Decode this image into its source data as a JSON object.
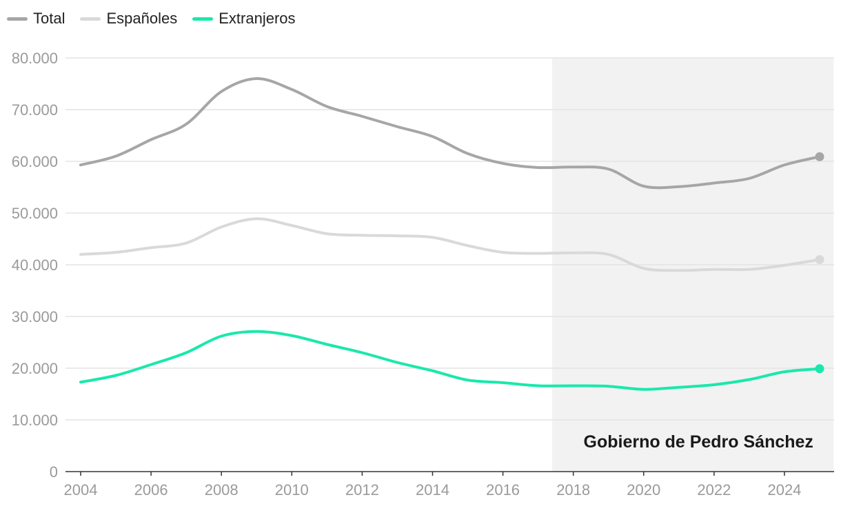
{
  "chart_data": {
    "type": "line",
    "x": [
      2004,
      2005,
      2006,
      2007,
      2008,
      2009,
      2010,
      2011,
      2012,
      2013,
      2014,
      2015,
      2016,
      2017,
      2018,
      2019,
      2020,
      2021,
      2022,
      2023,
      2024,
      2025
    ],
    "xticks": [
      "2004",
      "2006",
      "2008",
      "2010",
      "2012",
      "2014",
      "2016",
      "2018",
      "2020",
      "2022",
      "2024"
    ],
    "yticks": [
      "0",
      "10.000",
      "20.000",
      "30.000",
      "40.000",
      "50.000",
      "60.000",
      "70.000",
      "80.000"
    ],
    "ylim": [
      0,
      80000
    ],
    "xlim": [
      2004,
      2025
    ],
    "grid": "horizontal",
    "legend_position": "top-left",
    "series": [
      {
        "name": "Total",
        "color": "#a6a6a6",
        "values": [
          59300,
          61000,
          64200,
          67200,
          73500,
          76000,
          73900,
          70600,
          68700,
          66700,
          64800,
          61500,
          59600,
          58800,
          58900,
          58500,
          55200,
          55100,
          55800,
          56700,
          59300,
          60900
        ]
      },
      {
        "name": "Españoles",
        "color": "#d9d9d9",
        "values": [
          42000,
          42400,
          43300,
          44200,
          47300,
          48900,
          47600,
          46000,
          45700,
          45600,
          45300,
          43700,
          42400,
          42200,
          42300,
          42000,
          39300,
          38900,
          39100,
          39100,
          39900,
          41000
        ]
      },
      {
        "name": "Extranjeros",
        "color": "#19e8ac",
        "values": [
          17300,
          18600,
          20700,
          23000,
          26200,
          27100,
          26300,
          24600,
          23000,
          21100,
          19500,
          17700,
          17200,
          16600,
          16600,
          16500,
          15900,
          16300,
          16800,
          17800,
          19300,
          19900
        ]
      }
    ],
    "shaded_region": {
      "x_start": 2017.4,
      "x_end": 2025.4,
      "label": "Gobierno de Pedro Sánchez",
      "color": "#f2f2f2"
    }
  }
}
